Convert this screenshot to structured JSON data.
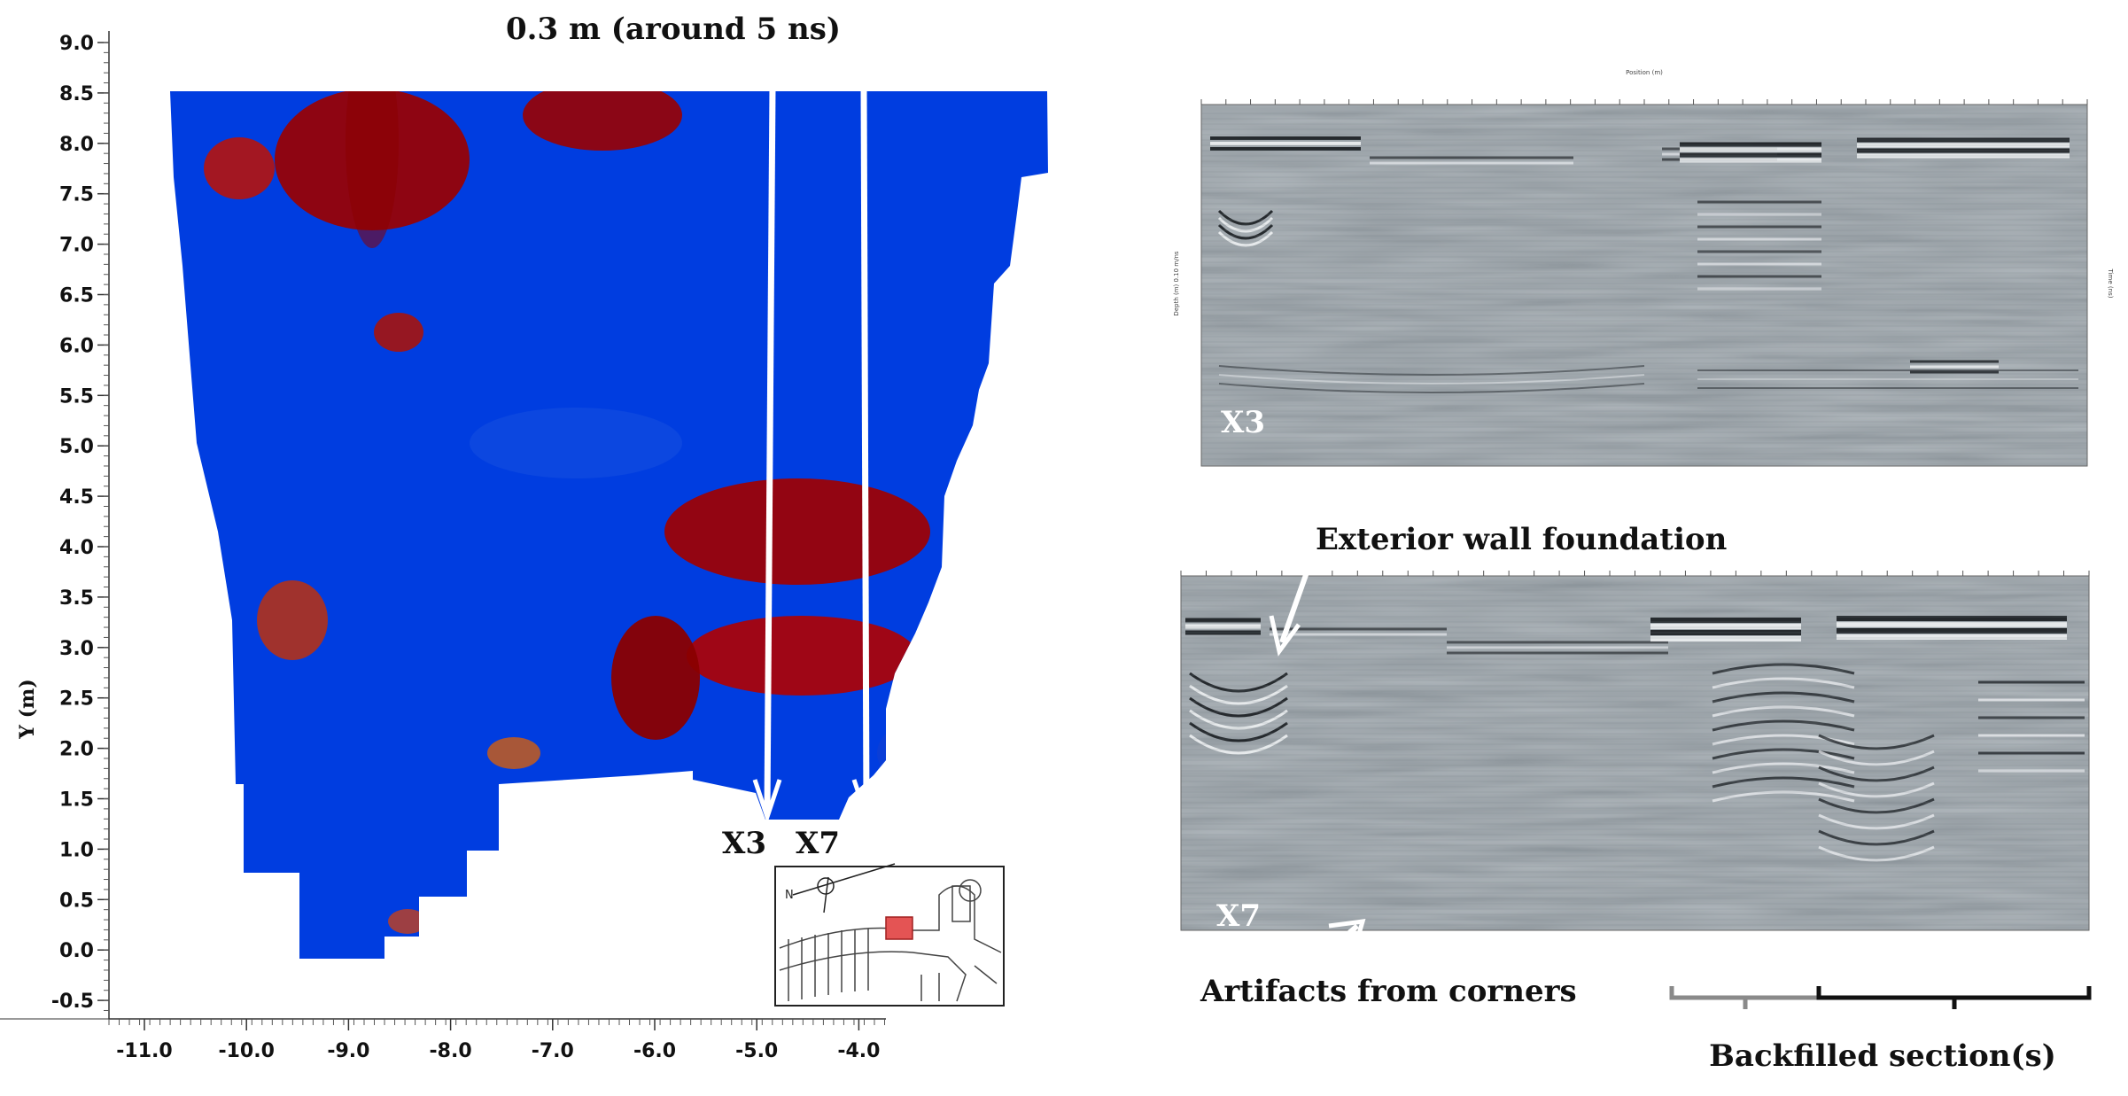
{
  "heatmap": {
    "title": "0.3 m (around 5 ns)",
    "y_label": "Y (m)",
    "y_ticks": [
      "9.0",
      "8.5",
      "8.0",
      "7.5",
      "7.0",
      "6.5",
      "6.0",
      "5.5",
      "5.0",
      "4.5",
      "4.0",
      "3.5",
      "3.0",
      "2.5",
      "2.0",
      "1.5",
      "1.0",
      "0.5",
      "0.0",
      "-0.5"
    ],
    "x_ticks": [
      "-11.0",
      "-10.0",
      "-9.0",
      "-8.0",
      "-7.0",
      "-6.0",
      "-5.0",
      "-4.0"
    ],
    "line_labels": [
      "X3",
      "X7"
    ]
  },
  "profiles": {
    "top_label": "X3",
    "bottom_label": "X7",
    "annotation_wall": "Exterior wall foundation",
    "annotation_artifacts": "Artifacts from corners",
    "annotation_backfill": "Backfilled section(s)",
    "top_axis_title": "Position (m)",
    "left_axis_title": "Depth (m) 0.10 m/ns",
    "right_axis_title": "Time (ns)"
  },
  "colors": {
    "profile_bg": "#8d969c",
    "arrow": "#ffffff",
    "inset_highlight": "#e45454"
  }
}
